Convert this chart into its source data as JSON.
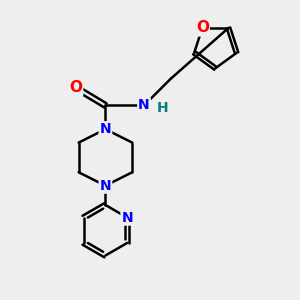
{
  "bg_color": "#eeeeee",
  "bond_color": "#000000",
  "bond_width": 1.8,
  "atom_colors": {
    "N": "#0000ff",
    "O": "#ff0000",
    "H": "#008080",
    "C": "#000000"
  },
  "font_size": 10,
  "figsize": [
    3.0,
    3.0
  ],
  "dpi": 100
}
